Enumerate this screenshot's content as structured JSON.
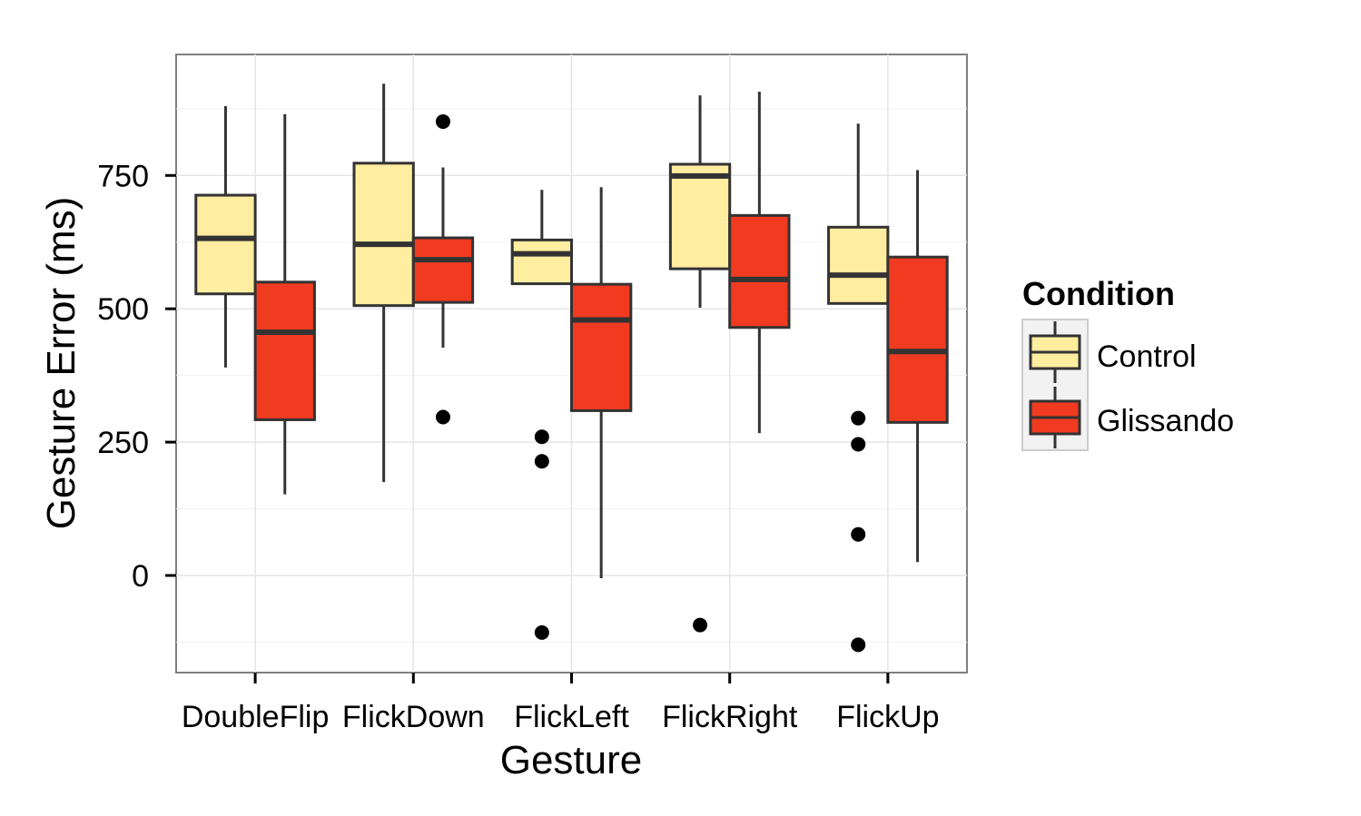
{
  "chart_data": {
    "type": "box",
    "xlabel": "Gesture",
    "ylabel": "Gesture Error (ms)",
    "ylim": [
      -175,
      975
    ],
    "yticks": [
      0,
      250,
      500,
      750
    ],
    "grid": true,
    "legend_position": "right",
    "legend_title": "Condition",
    "categories": [
      "DoubleFlip",
      "FlickDown",
      "FlickLeft",
      "FlickRight",
      "FlickUp"
    ],
    "series": [
      {
        "name": "Control",
        "color": "#FFEDA0",
        "boxes": [
          {
            "min": 390,
            "q1": 528,
            "median": 632,
            "q3": 713,
            "max": 880,
            "outliers": []
          },
          {
            "min": 175,
            "q1": 506,
            "median": 621,
            "q3": 773,
            "max": 922,
            "outliers": []
          },
          {
            "min": 547,
            "q1": 547,
            "median": 603,
            "q3": 629,
            "max": 723,
            "outliers": [
              260,
              214,
              -107
            ]
          },
          {
            "min": 502,
            "q1": 575,
            "median": 749,
            "q3": 771,
            "max": 900,
            "outliers": [
              -93
            ]
          },
          {
            "min": 510,
            "q1": 510,
            "median": 563,
            "q3": 653,
            "max": 847,
            "outliers": [
              295,
              246,
              77,
              -130
            ]
          }
        ]
      },
      {
        "name": "Glissando",
        "color": "#F03B20",
        "boxes": [
          {
            "min": 152,
            "q1": 292,
            "median": 456,
            "q3": 550,
            "max": 865,
            "outliers": []
          },
          {
            "min": 427,
            "q1": 512,
            "median": 592,
            "q3": 633,
            "max": 765,
            "outliers": [
              851,
              297
            ]
          },
          {
            "min": -5,
            "q1": 309,
            "median": 479,
            "q3": 546,
            "max": 728,
            "outliers": []
          },
          {
            "min": 267,
            "q1": 465,
            "median": 555,
            "q3": 675,
            "max": 907,
            "outliers": []
          },
          {
            "min": 25,
            "q1": 287,
            "median": 420,
            "q3": 597,
            "max": 760,
            "outliers": []
          }
        ]
      }
    ]
  }
}
